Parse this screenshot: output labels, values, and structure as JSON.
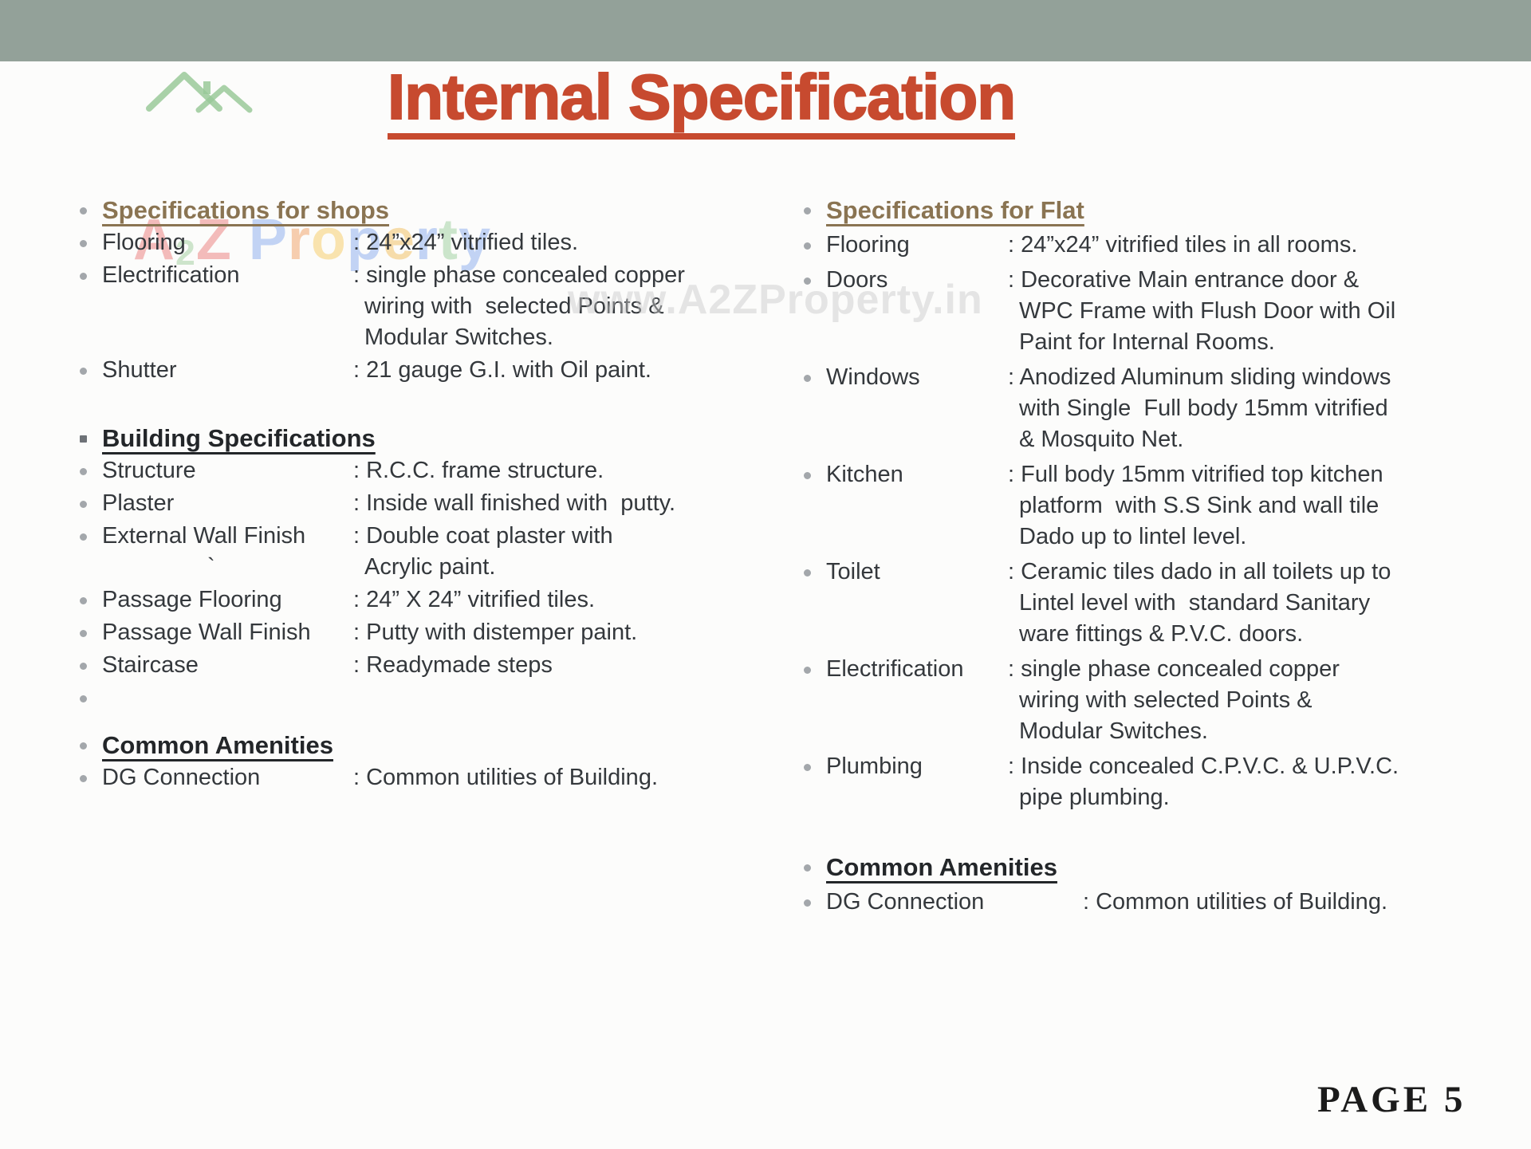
{
  "title": {
    "text": "Internal Specification"
  },
  "watermark": {
    "text": "www.A2ZProperty.in"
  },
  "page_footer": {
    "label": "PAGE 5"
  },
  "colors": {
    "header_bar": "#93a199",
    "title_accent": "#c74a2f",
    "section_heading_brown": "#8a7452",
    "body_text": "#34383c"
  },
  "logo": {
    "text": "A2Z Property",
    "house_icon_color": "#8fc48f",
    "letters": [
      {
        "ch": "A",
        "color": "#f3b5b3",
        "small": false
      },
      {
        "ch": "2",
        "color": "#c9e2c6",
        "small": true
      },
      {
        "ch": "Z",
        "color": "#f3b5b3",
        "small": false
      },
      {
        "ch": " ",
        "color": "#ffffff",
        "small": false
      },
      {
        "ch": "P",
        "color": "#bccff4",
        "small": false
      },
      {
        "ch": "r",
        "color": "#f6c8a6",
        "small": false
      },
      {
        "ch": "o",
        "color": "#f9e1a6",
        "small": false
      },
      {
        "ch": "p",
        "color": "#bccff4",
        "small": false
      },
      {
        "ch": "e",
        "color": "#f6d9a2",
        "small": false
      },
      {
        "ch": "r",
        "color": "#bccff4",
        "small": false
      },
      {
        "ch": "t",
        "color": "#c6e3c6",
        "small": false
      },
      {
        "ch": "y",
        "color": "#bccff4",
        "small": false
      }
    ]
  },
  "columns": [
    {
      "id": "shops",
      "sections": [
        {
          "type": "colhead",
          "text": "Specifications for shops"
        },
        {
          "type": "spec",
          "label": "Flooring",
          "value_lines": [
            ": 24”x24” vitrified tiles."
          ]
        },
        {
          "type": "spec",
          "label": "Electrification",
          "value_lines": [
            ": single phase concealed copper",
            "wiring with  selected Points &",
            "Modular Switches."
          ]
        },
        {
          "type": "spec",
          "label": "Shutter",
          "value_lines": [
            ": 21 gauge G.I. with Oil paint."
          ]
        },
        {
          "type": "sechead",
          "bullet": "square",
          "text": "Building Specifications"
        },
        {
          "type": "spec",
          "label": "Structure",
          "value_lines": [
            ": R.C.C. frame structure."
          ]
        },
        {
          "type": "spec",
          "label": "Plaster",
          "value_lines": [
            ": Inside wall finished with  putty."
          ]
        },
        {
          "type": "spec",
          "label": "External Wall Finish",
          "label_note": "`",
          "value_lines": [
            ": Double coat plaster with",
            "Acrylic paint."
          ]
        },
        {
          "type": "spec",
          "label": "Passage Flooring",
          "value_lines": [
            ": 24” X 24” vitrified tiles."
          ]
        },
        {
          "type": "spec",
          "label": "Passage Wall Finish",
          "value_lines": [
            ": Putty with distemper paint."
          ]
        },
        {
          "type": "spec",
          "label": "Staircase",
          "value_lines": [
            ": Readymade steps"
          ]
        },
        {
          "type": "blank"
        },
        {
          "type": "sechead",
          "bullet": "dot",
          "text": "Common Amenities"
        },
        {
          "type": "spec",
          "label": "DG Connection",
          "value_lines": [
            ": Common utilities of Building."
          ]
        }
      ]
    },
    {
      "id": "flat",
      "sections": [
        {
          "type": "colhead",
          "text": "Specifications for Flat"
        },
        {
          "type": "spec",
          "label": "Flooring",
          "value_lines": [
            ": 24”x24” vitrified tiles in all rooms."
          ]
        },
        {
          "type": "spec",
          "label": "Doors",
          "value_lines": [
            ": Decorative Main entrance door &",
            "WPC Frame with Flush Door with Oil",
            "Paint for Internal Rooms."
          ]
        },
        {
          "type": "spec",
          "label": "Windows",
          "value_lines": [
            ": Anodized Aluminum sliding windows",
            "with Single  Full body 15mm vitrified",
            "& Mosquito Net."
          ]
        },
        {
          "type": "spec",
          "label": "Kitchen",
          "value_lines": [
            ": Full body 15mm vitrified top kitchen",
            "platform  with S.S Sink and wall tile",
            "Dado up to lintel level."
          ]
        },
        {
          "type": "spec",
          "label": "Toilet",
          "value_lines": [
            ": Ceramic tiles dado in all toilets up to",
            "Lintel level with  standard Sanitary",
            "ware fittings & P.V.C. doors."
          ]
        },
        {
          "type": "spec",
          "label": "Electrification",
          "value_lines": [
            ": single phase concealed copper",
            "wiring with selected Points &",
            "Modular Switches."
          ]
        },
        {
          "type": "spec",
          "label": "Plumbing",
          "value_lines": [
            ": Inside concealed C.P.V.C. & U.P.V.C.",
            "pipe plumbing."
          ]
        },
        {
          "type": "sechead",
          "bullet": "dot",
          "text": "Common Amenities"
        },
        {
          "type": "spec",
          "label": "DG Connection",
          "wide_label": true,
          "value_lines": [
            ": Common utilities of Building."
          ]
        }
      ]
    }
  ]
}
